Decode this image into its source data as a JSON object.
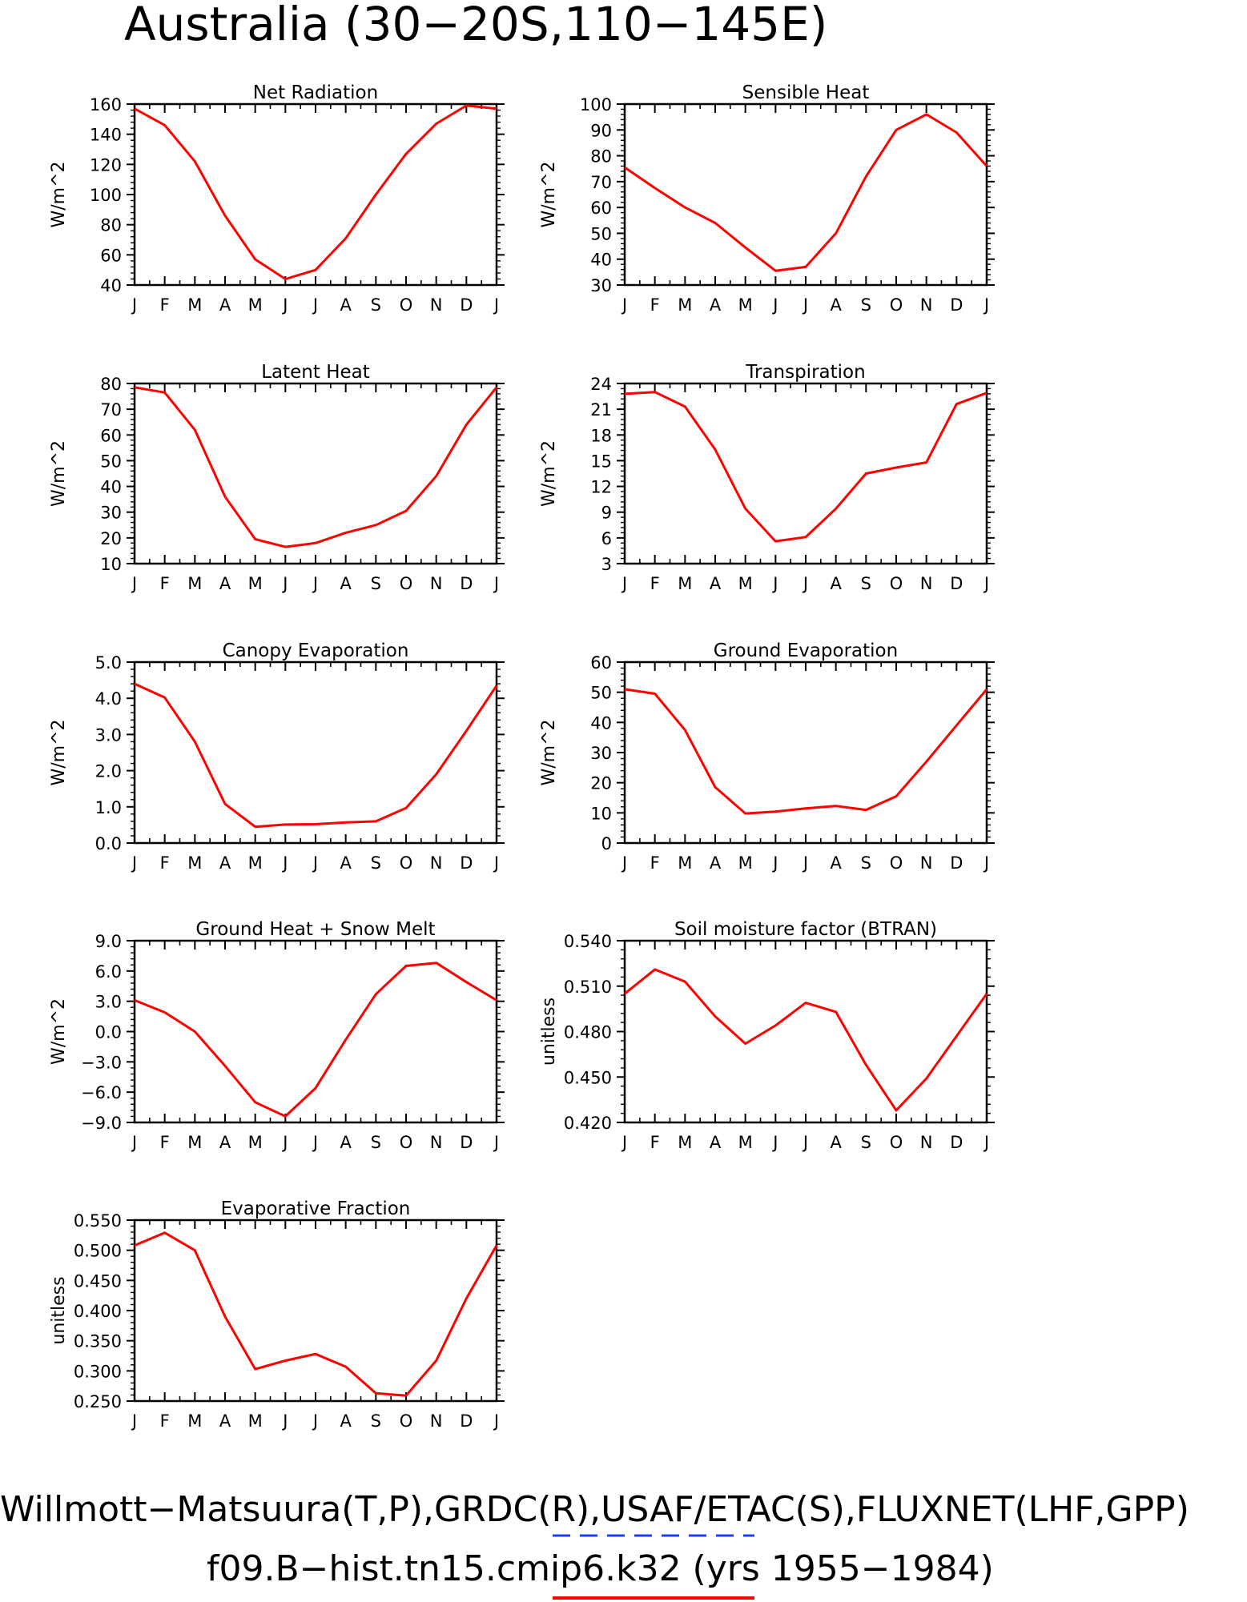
{
  "figure": {
    "title": "Australia (30−20S,110−145E)",
    "footer_line1": "Willmott−Matsuura(T,P),GRDC(R),USAF/ETAC(S),FLUXNET(LHF,GPP)",
    "footer_line2": "f09.B−hist.tn15.cmip6.k32 (yrs 1955−1984)",
    "line_color": "#ff0000",
    "dash_color": "#1f3fff"
  },
  "chart_data": [
    {
      "type": "line",
      "title": "Net Radiation",
      "ylabel": "W/m^2",
      "x": [
        "J",
        "F",
        "M",
        "A",
        "M",
        "J",
        "J",
        "A",
        "S",
        "O",
        "N",
        "D",
        "J"
      ],
      "values": [
        157,
        146,
        122,
        86,
        57,
        44,
        50,
        71,
        100,
        127,
        147,
        159,
        157
      ],
      "ylim": [
        40,
        160
      ],
      "yticks": [
        "40",
        "60",
        "80",
        "100",
        "120",
        "140",
        "160"
      ]
    },
    {
      "type": "line",
      "title": "Sensible Heat",
      "ylabel": "W/m^2",
      "x": [
        "J",
        "F",
        "M",
        "A",
        "M",
        "J",
        "J",
        "A",
        "S",
        "O",
        "N",
        "D",
        "J"
      ],
      "values": [
        75.5,
        67.5,
        60,
        54,
        44.5,
        35.5,
        37,
        50,
        72,
        90,
        96,
        89,
        76
      ],
      "ylim": [
        30,
        100
      ],
      "yticks": [
        "30",
        "40",
        "50",
        "60",
        "70",
        "80",
        "90",
        "100"
      ]
    },
    {
      "type": "line",
      "title": "Latent Heat",
      "ylabel": "W/m^2",
      "x": [
        "J",
        "F",
        "M",
        "A",
        "M",
        "J",
        "J",
        "A",
        "S",
        "O",
        "N",
        "D",
        "J"
      ],
      "values": [
        78.5,
        76.5,
        62,
        36,
        19.5,
        16.5,
        18,
        22,
        25,
        30.5,
        44,
        64,
        78.5
      ],
      "ylim": [
        10,
        80
      ],
      "yticks": [
        "10",
        "20",
        "30",
        "40",
        "50",
        "60",
        "70",
        "80"
      ]
    },
    {
      "type": "line",
      "title": "Transpiration",
      "ylabel": "W/m^2",
      "x": [
        "J",
        "F",
        "M",
        "A",
        "M",
        "J",
        "J",
        "A",
        "S",
        "O",
        "N",
        "D",
        "J"
      ],
      "values": [
        22.8,
        23,
        21.3,
        16.3,
        9.4,
        5.6,
        6.1,
        9.4,
        13.5,
        14.2,
        14.8,
        21.6,
        22.9
      ],
      "ylim": [
        3,
        24
      ],
      "yticks": [
        "3",
        "6",
        "9",
        "12",
        "15",
        "18",
        "21",
        "24"
      ]
    },
    {
      "type": "line",
      "title": "Canopy Evaporation",
      "ylabel": "W/m^2",
      "x": [
        "J",
        "F",
        "M",
        "A",
        "M",
        "J",
        "J",
        "A",
        "S",
        "O",
        "N",
        "D",
        "J"
      ],
      "values": [
        4.4,
        4.02,
        2.8,
        1.08,
        0.45,
        0.51,
        0.52,
        0.57,
        0.6,
        0.97,
        1.9,
        3.1,
        4.35
      ],
      "ylim": [
        0,
        5
      ],
      "yticks": [
        "0.0",
        "1.0",
        "2.0",
        "3.0",
        "4.0",
        "5.0"
      ]
    },
    {
      "type": "line",
      "title": "Ground Evaporation",
      "ylabel": "W/m^2",
      "x": [
        "J",
        "F",
        "M",
        "A",
        "M",
        "J",
        "J",
        "A",
        "S",
        "O",
        "N",
        "D",
        "J"
      ],
      "values": [
        51,
        49.5,
        37.5,
        18.5,
        9.8,
        10.4,
        11.5,
        12.3,
        11,
        15.5,
        27,
        39,
        51
      ],
      "ylim": [
        0,
        60
      ],
      "yticks": [
        "0",
        "10",
        "20",
        "30",
        "40",
        "50",
        "60"
      ]
    },
    {
      "type": "line",
      "title": "Ground Heat + Snow Melt",
      "ylabel": "W/m^2",
      "x": [
        "J",
        "F",
        "M",
        "A",
        "M",
        "J",
        "J",
        "A",
        "S",
        "O",
        "N",
        "D",
        "J"
      ],
      "values": [
        3.1,
        1.9,
        0,
        -3.4,
        -7,
        -8.4,
        -5.6,
        -0.8,
        3.7,
        6.5,
        6.8,
        4.9,
        3.1
      ],
      "ylim": [
        -9,
        9
      ],
      "yticks": [
        "−9.0",
        "−6.0",
        "−3.0",
        "0.0",
        "3.0",
        "6.0",
        "9.0"
      ]
    },
    {
      "type": "line",
      "title": "Soil moisture factor (BTRAN)",
      "ylabel": "unitless",
      "x": [
        "J",
        "F",
        "M",
        "A",
        "M",
        "J",
        "J",
        "A",
        "S",
        "O",
        "N",
        "D",
        "J"
      ],
      "values": [
        0.505,
        0.521,
        0.513,
        0.49,
        0.472,
        0.484,
        0.499,
        0.493,
        0.458,
        0.428,
        0.449,
        0.477,
        0.505
      ],
      "ylim": [
        0.42,
        0.54
      ],
      "yticks": [
        "0.420",
        "0.450",
        "0.480",
        "0.510",
        "0.540"
      ]
    },
    {
      "type": "line",
      "title": "Evaporative Fraction",
      "ylabel": "unitless",
      "x": [
        "J",
        "F",
        "M",
        "A",
        "M",
        "J",
        "J",
        "A",
        "S",
        "O",
        "N",
        "D",
        "J"
      ],
      "values": [
        0.508,
        0.529,
        0.5,
        0.39,
        0.303,
        0.317,
        0.328,
        0.307,
        0.263,
        0.259,
        0.317,
        0.42,
        0.508
      ],
      "ylim": [
        0.25,
        0.55
      ],
      "yticks": [
        "0.250",
        "0.300",
        "0.350",
        "0.400",
        "0.450",
        "0.500",
        "0.550"
      ]
    }
  ]
}
